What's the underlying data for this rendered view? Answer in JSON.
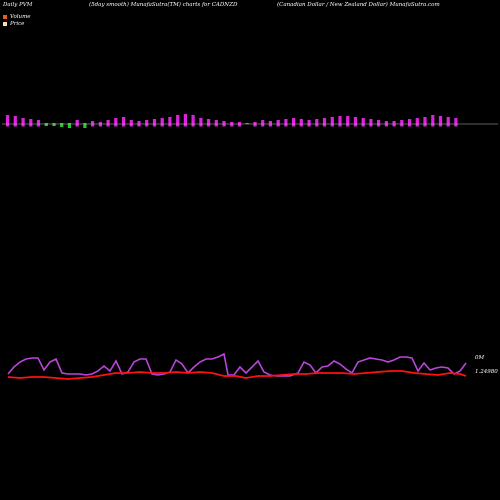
{
  "header": {
    "left": "Daily PVM",
    "middle": "(5day smooth) MunafaSutra(TM) charts for CADNZD",
    "right": "(Canadian  Dollar / New  Zealand Dollar) MunafaSutra.com"
  },
  "legend": {
    "volume_label": "Volume",
    "price_label": "Price",
    "volume_color": "#e8601a",
    "price_color": "#ffd9a8"
  },
  "colors": {
    "bar_up": "#dd22dd",
    "bar_down": "#22cc22",
    "pvm_line": "#bb44dd",
    "price_line": "#ff1111",
    "baseline": "#bbbbbb"
  },
  "chart_data": {
    "type": "line",
    "title": "(5day smooth) MunafaSutra(TM) charts for CADNZD",
    "xlabel": "",
    "ylabel": "",
    "right_labels": {
      "volume_value": "0M",
      "price_value": "1.24980"
    },
    "volume_bars": [
      {
        "dir": "up",
        "value": 9
      },
      {
        "dir": "up",
        "value": 8
      },
      {
        "dir": "up",
        "value": 6
      },
      {
        "dir": "up",
        "value": 5
      },
      {
        "dir": "up",
        "value": 4
      },
      {
        "dir": "down",
        "value": 3
      },
      {
        "dir": "down",
        "value": 3
      },
      {
        "dir": "down",
        "value": 4
      },
      {
        "dir": "down",
        "value": 5
      },
      {
        "dir": "up",
        "value": 4
      },
      {
        "dir": "down",
        "value": 5
      },
      {
        "dir": "up",
        "value": 3
      },
      {
        "dir": "up",
        "value": 2
      },
      {
        "dir": "up",
        "value": 4
      },
      {
        "dir": "up",
        "value": 6
      },
      {
        "dir": "up",
        "value": 7
      },
      {
        "dir": "up",
        "value": 4
      },
      {
        "dir": "up",
        "value": 3
      },
      {
        "dir": "up",
        "value": 4
      },
      {
        "dir": "up",
        "value": 5
      },
      {
        "dir": "up",
        "value": 6
      },
      {
        "dir": "up",
        "value": 7
      },
      {
        "dir": "up",
        "value": 9
      },
      {
        "dir": "up",
        "value": 10
      },
      {
        "dir": "up",
        "value": 9
      },
      {
        "dir": "up",
        "value": 6
      },
      {
        "dir": "up",
        "value": 5
      },
      {
        "dir": "up",
        "value": 4
      },
      {
        "dir": "up",
        "value": 3
      },
      {
        "dir": "up",
        "value": 2
      },
      {
        "dir": "up",
        "value": 2
      },
      {
        "dir": "down",
        "value": 1
      },
      {
        "dir": "up",
        "value": 2
      },
      {
        "dir": "up",
        "value": 4
      },
      {
        "dir": "up",
        "value": 3
      },
      {
        "dir": "up",
        "value": 4
      },
      {
        "dir": "up",
        "value": 5
      },
      {
        "dir": "up",
        "value": 6
      },
      {
        "dir": "up",
        "value": 5
      },
      {
        "dir": "up",
        "value": 4
      },
      {
        "dir": "up",
        "value": 5
      },
      {
        "dir": "up",
        "value": 6
      },
      {
        "dir": "up",
        "value": 7
      },
      {
        "dir": "up",
        "value": 8
      },
      {
        "dir": "up",
        "value": 8
      },
      {
        "dir": "up",
        "value": 7
      },
      {
        "dir": "up",
        "value": 6
      },
      {
        "dir": "up",
        "value": 5
      },
      {
        "dir": "up",
        "value": 4
      },
      {
        "dir": "up",
        "value": 3
      },
      {
        "dir": "up",
        "value": 3
      },
      {
        "dir": "up",
        "value": 4
      },
      {
        "dir": "up",
        "value": 5
      },
      {
        "dir": "up",
        "value": 6
      },
      {
        "dir": "up",
        "value": 7
      },
      {
        "dir": "up",
        "value": 9
      },
      {
        "dir": "up",
        "value": 8
      },
      {
        "dir": "up",
        "value": 7
      },
      {
        "dir": "up",
        "value": 6
      }
    ],
    "pvm_series": [
      {
        "x": 8,
        "y": 374
      },
      {
        "x": 14,
        "y": 367
      },
      {
        "x": 20,
        "y": 362
      },
      {
        "x": 26,
        "y": 359
      },
      {
        "x": 32,
        "y": 358
      },
      {
        "x": 38,
        "y": 358
      },
      {
        "x": 44,
        "y": 370
      },
      {
        "x": 50,
        "y": 362
      },
      {
        "x": 56,
        "y": 359
      },
      {
        "x": 62,
        "y": 373
      },
      {
        "x": 68,
        "y": 374
      },
      {
        "x": 74,
        "y": 374
      },
      {
        "x": 80,
        "y": 374
      },
      {
        "x": 86,
        "y": 375
      },
      {
        "x": 92,
        "y": 374
      },
      {
        "x": 98,
        "y": 371
      },
      {
        "x": 104,
        "y": 366
      },
      {
        "x": 110,
        "y": 371
      },
      {
        "x": 116,
        "y": 361
      },
      {
        "x": 122,
        "y": 374
      },
      {
        "x": 128,
        "y": 372
      },
      {
        "x": 134,
        "y": 362
      },
      {
        "x": 140,
        "y": 359
      },
      {
        "x": 146,
        "y": 359
      },
      {
        "x": 152,
        "y": 374
      },
      {
        "x": 158,
        "y": 375
      },
      {
        "x": 164,
        "y": 374
      },
      {
        "x": 170,
        "y": 372
      },
      {
        "x": 176,
        "y": 360
      },
      {
        "x": 182,
        "y": 364
      },
      {
        "x": 188,
        "y": 373
      },
      {
        "x": 194,
        "y": 367
      },
      {
        "x": 200,
        "y": 362
      },
      {
        "x": 206,
        "y": 359
      },
      {
        "x": 212,
        "y": 359
      },
      {
        "x": 218,
        "y": 357
      },
      {
        "x": 224,
        "y": 354
      },
      {
        "x": 228,
        "y": 375
      },
      {
        "x": 234,
        "y": 375
      },
      {
        "x": 240,
        "y": 367
      },
      {
        "x": 246,
        "y": 373
      },
      {
        "x": 252,
        "y": 367
      },
      {
        "x": 258,
        "y": 361
      },
      {
        "x": 264,
        "y": 372
      },
      {
        "x": 270,
        "y": 375
      },
      {
        "x": 276,
        "y": 376
      },
      {
        "x": 282,
        "y": 376
      },
      {
        "x": 290,
        "y": 376
      },
      {
        "x": 298,
        "y": 373
      },
      {
        "x": 304,
        "y": 362
      },
      {
        "x": 310,
        "y": 365
      },
      {
        "x": 316,
        "y": 373
      },
      {
        "x": 322,
        "y": 367
      },
      {
        "x": 328,
        "y": 366
      },
      {
        "x": 334,
        "y": 361
      },
      {
        "x": 340,
        "y": 364
      },
      {
        "x": 346,
        "y": 369
      },
      {
        "x": 352,
        "y": 373
      },
      {
        "x": 358,
        "y": 362
      },
      {
        "x": 364,
        "y": 360
      },
      {
        "x": 370,
        "y": 358
      },
      {
        "x": 376,
        "y": 359
      },
      {
        "x": 382,
        "y": 360
      },
      {
        "x": 388,
        "y": 362
      },
      {
        "x": 394,
        "y": 360
      },
      {
        "x": 400,
        "y": 357
      },
      {
        "x": 406,
        "y": 357
      },
      {
        "x": 412,
        "y": 358
      },
      {
        "x": 418,
        "y": 371
      },
      {
        "x": 424,
        "y": 363
      },
      {
        "x": 430,
        "y": 370
      },
      {
        "x": 436,
        "y": 368
      },
      {
        "x": 442,
        "y": 367
      },
      {
        "x": 448,
        "y": 368
      },
      {
        "x": 454,
        "y": 374
      },
      {
        "x": 460,
        "y": 371
      },
      {
        "x": 466,
        "y": 363
      }
    ],
    "price_series": [
      {
        "x": 8,
        "y": 377
      },
      {
        "x": 20,
        "y": 378
      },
      {
        "x": 32,
        "y": 377
      },
      {
        "x": 44,
        "y": 377
      },
      {
        "x": 56,
        "y": 378
      },
      {
        "x": 68,
        "y": 379
      },
      {
        "x": 80,
        "y": 378
      },
      {
        "x": 92,
        "y": 377
      },
      {
        "x": 104,
        "y": 375
      },
      {
        "x": 116,
        "y": 373
      },
      {
        "x": 128,
        "y": 373
      },
      {
        "x": 140,
        "y": 372
      },
      {
        "x": 152,
        "y": 373
      },
      {
        "x": 164,
        "y": 373
      },
      {
        "x": 176,
        "y": 372
      },
      {
        "x": 188,
        "y": 373
      },
      {
        "x": 200,
        "y": 372
      },
      {
        "x": 212,
        "y": 373
      },
      {
        "x": 224,
        "y": 376
      },
      {
        "x": 236,
        "y": 376
      },
      {
        "x": 246,
        "y": 378
      },
      {
        "x": 258,
        "y": 376
      },
      {
        "x": 270,
        "y": 376
      },
      {
        "x": 282,
        "y": 375
      },
      {
        "x": 294,
        "y": 374
      },
      {
        "x": 306,
        "y": 374
      },
      {
        "x": 318,
        "y": 373
      },
      {
        "x": 330,
        "y": 373
      },
      {
        "x": 342,
        "y": 373
      },
      {
        "x": 354,
        "y": 374
      },
      {
        "x": 366,
        "y": 373
      },
      {
        "x": 378,
        "y": 372
      },
      {
        "x": 390,
        "y": 371
      },
      {
        "x": 402,
        "y": 371
      },
      {
        "x": 414,
        "y": 373
      },
      {
        "x": 426,
        "y": 374
      },
      {
        "x": 438,
        "y": 375
      },
      {
        "x": 450,
        "y": 373
      },
      {
        "x": 460,
        "y": 374
      },
      {
        "x": 466,
        "y": 376
      }
    ]
  }
}
